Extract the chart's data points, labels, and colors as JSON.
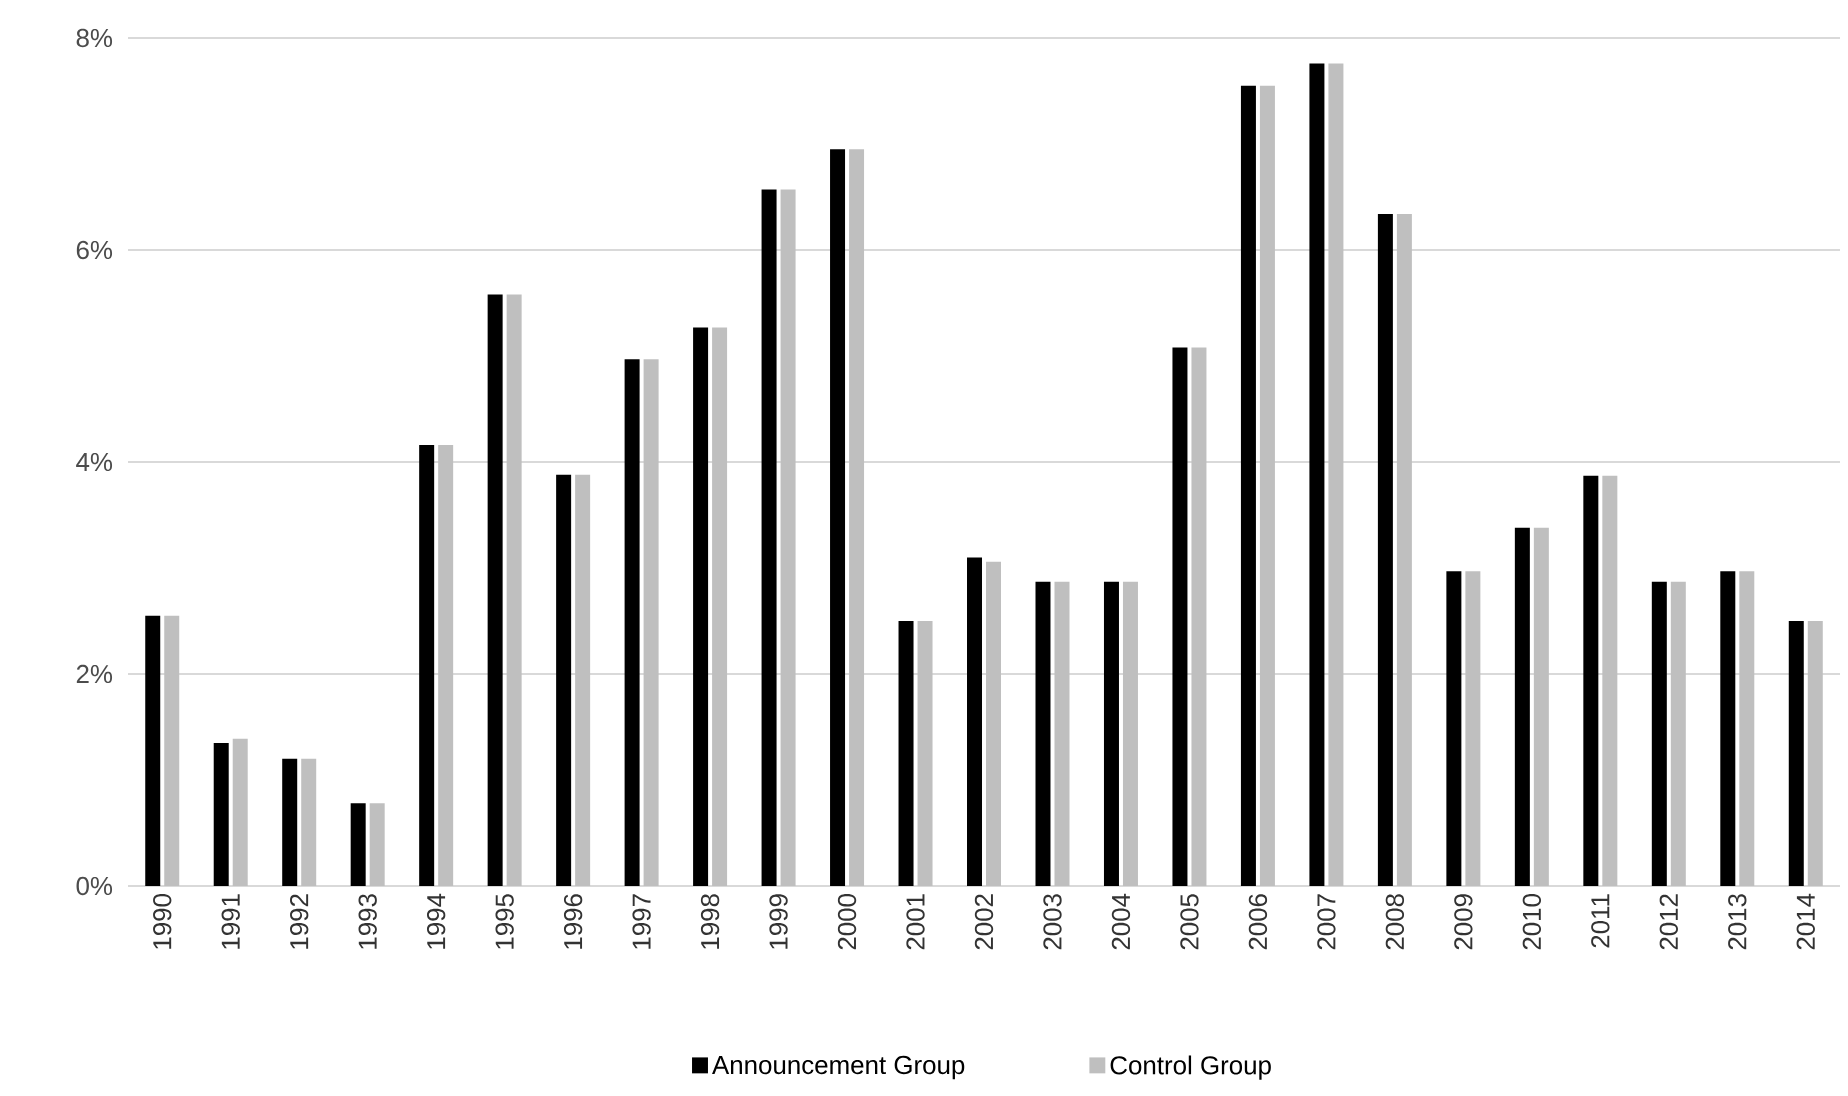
{
  "chart_data": {
    "type": "bar",
    "categories": [
      "1990",
      "1991",
      "1992",
      "1993",
      "1994",
      "1995",
      "1996",
      "1997",
      "1998",
      "1999",
      "2000",
      "2001",
      "2002",
      "2003",
      "2004",
      "2005",
      "2006",
      "2007",
      "2008",
      "2009",
      "2010",
      "2011",
      "2012",
      "2013",
      "2014"
    ],
    "series": [
      {
        "name": "Announcement Group",
        "color": "#000000",
        "values": [
          2.55,
          1.35,
          1.2,
          0.78,
          4.16,
          5.58,
          3.88,
          4.97,
          5.27,
          6.57,
          6.95,
          2.5,
          3.1,
          2.87,
          2.87,
          5.08,
          7.55,
          7.76,
          6.34,
          2.97,
          3.38,
          3.87,
          2.87,
          2.97,
          2.5
        ]
      },
      {
        "name": "Control Group",
        "color": "#bfbfbf",
        "values": [
          2.55,
          1.39,
          1.2,
          0.78,
          4.16,
          5.58,
          3.88,
          4.97,
          5.27,
          6.57,
          6.95,
          2.5,
          3.06,
          2.87,
          2.87,
          5.08,
          7.55,
          7.76,
          6.34,
          2.97,
          3.38,
          3.87,
          2.87,
          2.97,
          2.5
        ]
      }
    ],
    "ylim": [
      0,
      8
    ],
    "yticks": [
      {
        "value": 0,
        "label": "0%"
      },
      {
        "value": 2,
        "label": "2%"
      },
      {
        "value": 4,
        "label": "4%"
      },
      {
        "value": 6,
        "label": "6%"
      },
      {
        "value": 8,
        "label": "8%"
      }
    ],
    "grid": "y",
    "legend": "bottom"
  }
}
